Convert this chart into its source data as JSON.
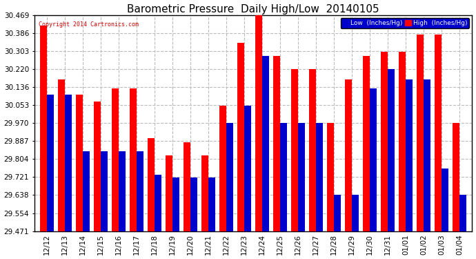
{
  "title": "Barometric Pressure  Daily High/Low  20140105",
  "copyright": "Copyright 2014 Cartronics.com",
  "categories": [
    "12/12",
    "12/13",
    "12/14",
    "12/15",
    "12/16",
    "12/17",
    "12/18",
    "12/19",
    "12/20",
    "12/21",
    "12/22",
    "12/23",
    "12/24",
    "12/25",
    "12/26",
    "12/27",
    "12/28",
    "12/29",
    "12/30",
    "12/31",
    "01/01",
    "01/02",
    "01/03",
    "01/04"
  ],
  "high_values": [
    30.42,
    30.17,
    30.1,
    30.07,
    30.13,
    30.13,
    29.9,
    29.82,
    29.88,
    29.82,
    30.05,
    30.34,
    30.47,
    30.28,
    30.22,
    30.22,
    29.97,
    30.17,
    30.28,
    30.3,
    30.3,
    30.38,
    30.38,
    29.97
  ],
  "low_values": [
    30.1,
    30.1,
    29.84,
    29.84,
    29.84,
    29.84,
    29.73,
    29.72,
    29.72,
    29.72,
    29.97,
    30.05,
    30.28,
    29.97,
    29.97,
    29.97,
    29.64,
    29.64,
    30.13,
    30.22,
    30.17,
    30.17,
    29.76,
    29.64
  ],
  "high_color": "#FF0000",
  "low_color": "#0000CC",
  "bg_color": "#FFFFFF",
  "grid_color": "#BBBBBB",
  "title_color": "#000000",
  "ylim_min": 29.471,
  "ylim_max": 30.469,
  "yticks": [
    29.471,
    29.554,
    29.638,
    29.721,
    29.804,
    29.887,
    29.97,
    30.053,
    30.136,
    30.22,
    30.303,
    30.386,
    30.469
  ],
  "legend_low_label": "Low  (Inches/Hg)",
  "legend_high_label": "High  (Inches/Hg)",
  "title_fontsize": 11,
  "tick_fontsize": 7.5,
  "bar_width": 0.38
}
